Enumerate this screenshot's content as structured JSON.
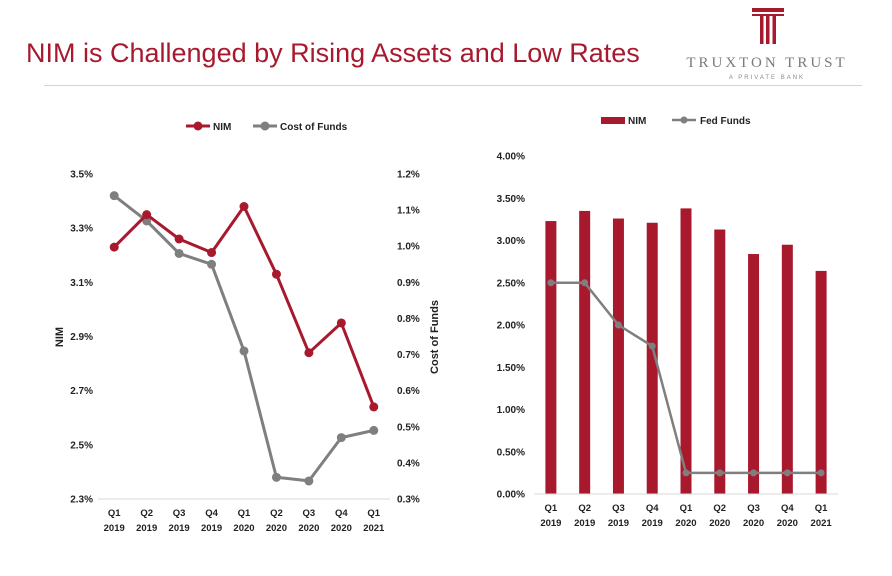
{
  "slide": {
    "title": "NIM is Challenged by Rising Assets and Low Rates"
  },
  "logo": {
    "name": "TRUXTON TRUST",
    "tagline": "A PRIVATE BANK"
  },
  "colors": {
    "brand": "#a8192e",
    "grey_series": "#7f7f7f",
    "axis": "#d9d9d9"
  },
  "chart_data": [
    {
      "type": "line",
      "categories": [
        [
          "Q1",
          "2019"
        ],
        [
          "Q2",
          "2019"
        ],
        [
          "Q3",
          "2019"
        ],
        [
          "Q4",
          "2019"
        ],
        [
          "Q1",
          "2020"
        ],
        [
          "Q2",
          "2020"
        ],
        [
          "Q3",
          "2020"
        ],
        [
          "Q4",
          "2020"
        ],
        [
          "Q1",
          "2021"
        ]
      ],
      "series": [
        {
          "name": "NIM",
          "axis": "left",
          "color": "#a8192e",
          "values": [
            3.23,
            3.35,
            3.26,
            3.21,
            3.38,
            3.13,
            2.84,
            2.95,
            2.64
          ]
        },
        {
          "name": "Cost of Funds",
          "axis": "right",
          "color": "#7f7f7f",
          "values": [
            1.14,
            1.07,
            0.98,
            0.95,
            0.71,
            0.36,
            0.35,
            0.47,
            0.49
          ]
        }
      ],
      "ylabel": "NIM",
      "y2label": "Cost of Funds",
      "ylim": [
        2.3,
        3.5
      ],
      "y2lim": [
        0.3,
        1.2
      ],
      "yticks": [
        2.3,
        2.5,
        2.7,
        2.9,
        3.1,
        3.3,
        3.5
      ],
      "ytick_labels": [
        "2.3%",
        "2.5%",
        "2.7%",
        "2.9%",
        "3.1%",
        "3.3%",
        "3.5%"
      ],
      "y2ticks": [
        0.3,
        0.4,
        0.5,
        0.6,
        0.7,
        0.8,
        0.9,
        1.0,
        1.1,
        1.2
      ],
      "y2tick_labels": [
        "0.3%",
        "0.4%",
        "0.5%",
        "0.6%",
        "0.7%",
        "0.8%",
        "0.9%",
        "1.0%",
        "1.1%",
        "1.2%"
      ],
      "legend": "top-center",
      "grid": false
    },
    {
      "type": "bar",
      "categories": [
        [
          "Q1",
          "2019"
        ],
        [
          "Q2",
          "2019"
        ],
        [
          "Q3",
          "2019"
        ],
        [
          "Q4",
          "2019"
        ],
        [
          "Q1",
          "2020"
        ],
        [
          "Q2",
          "2020"
        ],
        [
          "Q3",
          "2020"
        ],
        [
          "Q4",
          "2020"
        ],
        [
          "Q1",
          "2021"
        ]
      ],
      "series": [
        {
          "name": "NIM",
          "type": "bar",
          "color": "#a8192e",
          "values": [
            3.23,
            3.35,
            3.26,
            3.21,
            3.38,
            3.13,
            2.84,
            2.95,
            2.64
          ]
        },
        {
          "name": "Fed Funds",
          "type": "line",
          "color": "#7f7f7f",
          "values": [
            2.5,
            2.5,
            2.0,
            1.75,
            0.25,
            0.25,
            0.25,
            0.25,
            0.25
          ]
        }
      ],
      "ylim": [
        0,
        4.0
      ],
      "yticks": [
        0,
        0.5,
        1.0,
        1.5,
        2.0,
        2.5,
        3.0,
        3.5,
        4.0
      ],
      "ytick_labels": [
        "0.00%",
        "0.50%",
        "1.00%",
        "1.50%",
        "2.00%",
        "2.50%",
        "3.00%",
        "3.50%",
        "4.00%"
      ],
      "legend": "top-center",
      "grid": false
    }
  ]
}
